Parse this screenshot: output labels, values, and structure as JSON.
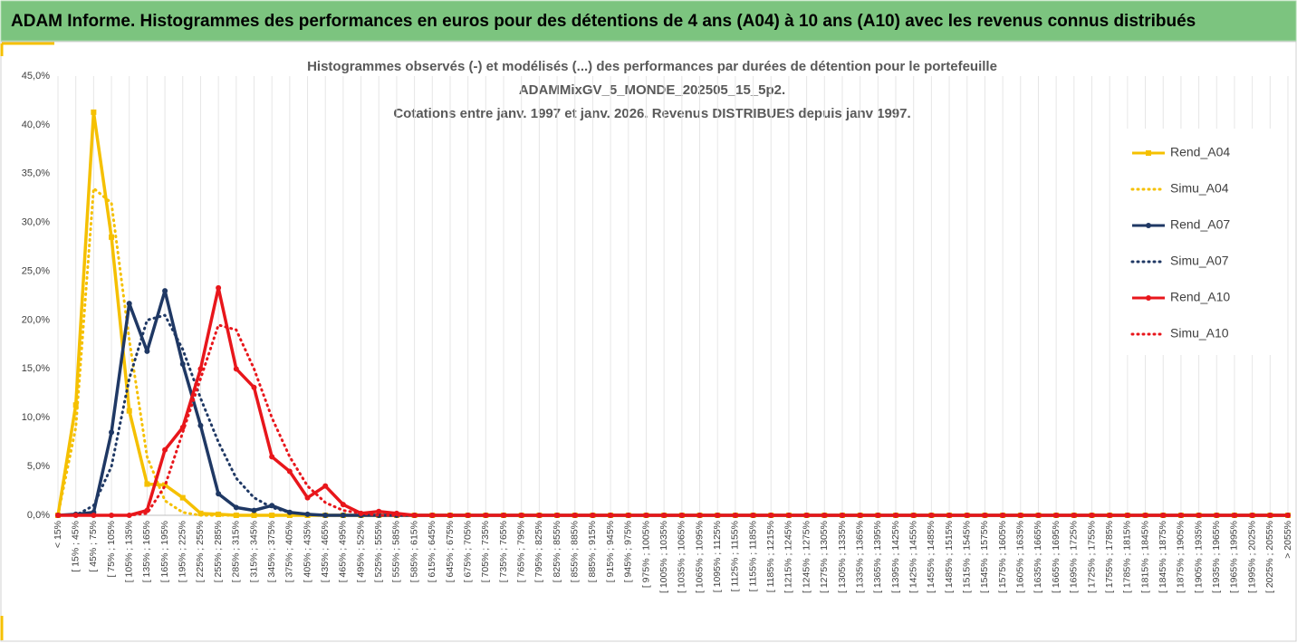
{
  "header": {
    "title": "ADAM Informe. Histogrammes des performances en euros pour des détentions de 4 ans (A04) à 10 ans (A10) avec les revenus connus distribués"
  },
  "chart_data": {
    "type": "line",
    "title": [
      "Histogrammes observés (-) et modélisés (...) des performances par durées de détention pour le portefeuille",
      "ADAMMixGV_5_MONDE_202505_15_5p2.",
      "Cotations  entre janv. 1997 et janv. 2026. Revenus DISTRIBUES depuis janv 1997."
    ],
    "categories": [
      "< 15%",
      "[ 15% ; 45%",
      "[ 45% ; 75%",
      "[ 75% ; 105%",
      "[ 105% ; 135%",
      "[ 135% ; 165%",
      "[ 165% ; 195%",
      "[ 195% ; 225%",
      "[ 225% ; 255%",
      "[ 255% ; 285%",
      "[ 285% ; 315%",
      "[ 315% ; 345%",
      "[ 345% ; 375%",
      "[ 375% ; 405%",
      "[ 405% ; 435%",
      "[ 435% ; 465%",
      "[ 465% ; 495%",
      "[ 495% ; 525%",
      "[ 525% ; 555%",
      "[ 555% ; 585%",
      "[ 585% ; 615%",
      "[ 615% ; 645%",
      "[ 645% ; 675%",
      "[ 675% ; 705%",
      "[ 705% ; 735%",
      "[ 735% ; 765%",
      "[ 765% ; 795%",
      "[ 795% ; 825%",
      "[ 825% ; 855%",
      "[ 855% ; 885%",
      "[ 885% ; 915%",
      "[ 915% ; 945%",
      "[ 945% ; 975%",
      "[ 975% ; 1005%",
      "[ 1005% ; 1035%",
      "[ 1035% ; 1065%",
      "[ 1065% ; 1095%",
      "[ 1095% ; 1125%",
      "[ 1125% ; 1155%",
      "[ 1155% ; 1185%",
      "[ 1185% ; 1215%",
      "[ 1215% ; 1245%",
      "[ 1245% ; 1275%",
      "[ 1275% ; 1305%",
      "[ 1305% ; 1335%",
      "[ 1335% ; 1365%",
      "[ 1365% ; 1395%",
      "[ 1395% ; 1425%",
      "[ 1425% ; 1455%",
      "[ 1455% ; 1485%",
      "[ 1485% ; 1515%",
      "[ 1515% ; 1545%",
      "[ 1545% ; 1575%",
      "[ 1575% ; 1605%",
      "[ 1605% ; 1635%",
      "[ 1635% ; 1665%",
      "[ 1665% ; 1695%",
      "[ 1695% ; 1725%",
      "[ 1725% ; 1755%",
      "[ 1755% ; 1785%",
      "[ 1785% ; 1815%",
      "[ 1815% ; 1845%",
      "[ 1845% ; 1875%",
      "[ 1875% ; 1905%",
      "[ 1905% ; 1935%",
      "[ 1935% ; 1965%",
      "[ 1965% ; 1995%",
      "[ 1995% ; 2025%",
      "[ 2025% ; 2055%",
      "> 2055%"
    ],
    "series": [
      {
        "name": "Rend_A04",
        "color": "#f5c000",
        "style": "solid",
        "marker": "square",
        "values": [
          0,
          11.3,
          41.3,
          28.5,
          10.7,
          3.2,
          3.1,
          1.8,
          0.2,
          0.1,
          0,
          0,
          0,
          0,
          0,
          0,
          0,
          0,
          0,
          0,
          0,
          0,
          0,
          0,
          0,
          0,
          0,
          0,
          0,
          0,
          0,
          0,
          0,
          0,
          0,
          0,
          0,
          0,
          0,
          0,
          0,
          0,
          0,
          0,
          0,
          0,
          0,
          0,
          0,
          0,
          0,
          0,
          0,
          0,
          0,
          0,
          0,
          0,
          0,
          0,
          0,
          0,
          0,
          0,
          0,
          0,
          0,
          0,
          0,
          0
        ]
      },
      {
        "name": "Simu_A04",
        "color": "#f5c000",
        "style": "dotted",
        "values": [
          0,
          9,
          33.5,
          32,
          18,
          6,
          1.5,
          0.3,
          0,
          0,
          0,
          0,
          0,
          0,
          0,
          0,
          0,
          0,
          0,
          0,
          0,
          0,
          0,
          0,
          0,
          0,
          0,
          0,
          0,
          0,
          0,
          0,
          0,
          0,
          0,
          0,
          0,
          0,
          0,
          0,
          0,
          0,
          0,
          0,
          0,
          0,
          0,
          0,
          0,
          0,
          0,
          0,
          0,
          0,
          0,
          0,
          0,
          0,
          0,
          0,
          0,
          0,
          0,
          0,
          0,
          0,
          0,
          0,
          0,
          0
        ]
      },
      {
        "name": "Rend_A07",
        "color": "#1f3864",
        "style": "solid",
        "marker": "circle",
        "values": [
          0,
          0.1,
          0.3,
          8.5,
          21.7,
          16.8,
          23,
          15.5,
          9.2,
          2.2,
          0.8,
          0.5,
          1.0,
          0.3,
          0.1,
          0,
          0,
          0,
          0,
          0,
          0,
          0,
          0,
          0,
          0,
          0,
          0,
          0,
          0,
          0,
          0,
          0,
          0,
          0,
          0,
          0,
          0,
          0,
          0,
          0,
          0,
          0,
          0,
          0,
          0,
          0,
          0,
          0,
          0,
          0,
          0,
          0,
          0,
          0,
          0,
          0,
          0,
          0,
          0,
          0,
          0,
          0,
          0,
          0,
          0,
          0,
          0,
          0,
          0,
          0
        ]
      },
      {
        "name": "Simu_A07",
        "color": "#1f3864",
        "style": "dotted",
        "values": [
          0,
          0,
          1,
          5,
          14,
          20,
          20.5,
          17,
          12,
          7.5,
          3.8,
          1.8,
          0.8,
          0.3,
          0.1,
          0,
          0,
          0,
          0,
          0,
          0,
          0,
          0,
          0,
          0,
          0,
          0,
          0,
          0,
          0,
          0,
          0,
          0,
          0,
          0,
          0,
          0,
          0,
          0,
          0,
          0,
          0,
          0,
          0,
          0,
          0,
          0,
          0,
          0,
          0,
          0,
          0,
          0,
          0,
          0,
          0,
          0,
          0,
          0,
          0,
          0,
          0,
          0,
          0,
          0,
          0,
          0,
          0,
          0,
          0
        ]
      },
      {
        "name": "Rend_A10",
        "color": "#e8161b",
        "style": "solid",
        "marker": "circle",
        "values": [
          0,
          0,
          0,
          0,
          0,
          0.5,
          6.7,
          9,
          15,
          23.3,
          15,
          13.1,
          6,
          4.5,
          1.8,
          3.0,
          1.1,
          0.2,
          0.4,
          0.2,
          0,
          0,
          0,
          0,
          0,
          0,
          0,
          0,
          0,
          0,
          0,
          0,
          0,
          0,
          0,
          0,
          0,
          0,
          0,
          0,
          0,
          0,
          0,
          0,
          0,
          0,
          0,
          0,
          0,
          0,
          0,
          0,
          0,
          0,
          0,
          0,
          0,
          0,
          0,
          0,
          0,
          0,
          0,
          0,
          0,
          0,
          0,
          0,
          0,
          0
        ]
      },
      {
        "name": "Simu_A10",
        "color": "#e8161b",
        "style": "dotted",
        "values": [
          0,
          0,
          0,
          0,
          0,
          0.2,
          3,
          8.5,
          14,
          19.5,
          19,
          15,
          10,
          6,
          3,
          1.3,
          0.5,
          0.2,
          0,
          0,
          0,
          0,
          0,
          0,
          0,
          0,
          0,
          0,
          0,
          0,
          0,
          0,
          0,
          0,
          0,
          0,
          0,
          0,
          0,
          0,
          0,
          0,
          0,
          0,
          0,
          0,
          0,
          0,
          0,
          0,
          0,
          0,
          0,
          0,
          0,
          0,
          0,
          0,
          0,
          0,
          0,
          0,
          0,
          0,
          0,
          0,
          0,
          0,
          0,
          0
        ]
      }
    ],
    "ylim": [
      0,
      45
    ],
    "yticks": [
      {
        "value": 0,
        "label": "0,0%"
      },
      {
        "value": 5,
        "label": "5,0%"
      },
      {
        "value": 10,
        "label": "10,0%"
      },
      {
        "value": 15,
        "label": "15,0%"
      },
      {
        "value": 20,
        "label": "20,0%"
      },
      {
        "value": 25,
        "label": "25,0%"
      },
      {
        "value": 30,
        "label": "30,0%"
      },
      {
        "value": 35,
        "label": "35,0%"
      },
      {
        "value": 40,
        "label": "40,0%"
      },
      {
        "value": 45,
        "label": "45,0%"
      }
    ],
    "grid": true,
    "legend": "right"
  }
}
